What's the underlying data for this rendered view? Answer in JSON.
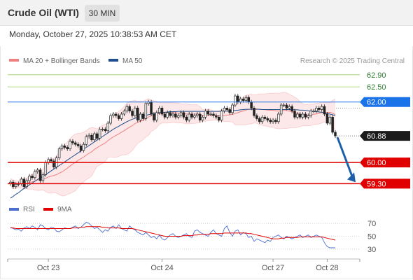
{
  "header": {
    "instrument": "Crude Oil (WTI)",
    "timeframe": "30 MIN",
    "timestamp": "Monday, October 27, 2025 10:38:53 AM CET",
    "copyright": "Research © 2025 Trading Central"
  },
  "colors": {
    "resistance": "#2e7d32",
    "pivot": "#1a73e8",
    "support": "#e00000",
    "last_price": "#1a1a1a",
    "ma50": "#1f4e8c",
    "bollinger": "#f08080",
    "rsi": "#4a6fd0",
    "rsi_ma": "#e00000",
    "arrow": "#1f5fa8"
  },
  "chart_data": [
    {
      "type": "candlestick",
      "title": "",
      "legend": [
        {
          "name": "MA 20 + Bollinger Bands",
          "color": "#f08080"
        },
        {
          "name": "MA 50",
          "color": "#1f4e8c"
        }
      ],
      "ylim": [
        58.8,
        63.15
      ],
      "x_ticks": [
        {
          "label": "Oct 23",
          "index": 14
        },
        {
          "label": "Oct 24",
          "index": 56
        },
        {
          "label": "Oct 27",
          "index": 97
        },
        {
          "label": "Oct 28",
          "index": 117
        }
      ],
      "price_series": [
        59.35,
        59.2,
        59.28,
        59.3,
        59.45,
        59.2,
        59.4,
        59.55,
        59.5,
        59.7,
        59.75,
        59.4,
        59.6,
        60.0,
        60.1,
        60.05,
        59.85,
        60.15,
        60.45,
        60.55,
        60.5,
        60.45,
        60.7,
        60.65,
        60.6,
        60.55,
        60.4,
        60.6,
        60.85,
        60.9,
        60.75,
        60.95,
        60.8,
        61.1,
        61.1,
        61.05,
        61.3,
        61.55,
        61.6,
        61.55,
        61.45,
        61.6,
        61.7,
        61.85,
        61.7,
        61.55,
        61.8,
        61.4,
        61.6,
        61.45,
        61.95,
        62.0,
        61.6,
        61.4,
        61.65,
        61.8,
        61.6,
        61.5,
        61.65,
        61.55,
        61.6,
        61.5,
        61.55,
        61.65,
        61.5,
        61.4,
        61.6,
        61.5,
        61.55,
        61.6,
        61.4,
        61.5,
        61.7,
        61.6,
        61.6,
        61.55,
        61.5,
        61.4,
        61.7,
        61.8,
        61.75,
        61.65,
        61.9,
        62.2,
        62.0,
        62.1,
        62.05,
        62.15,
        62.0,
        61.8,
        61.55,
        61.45,
        61.35,
        61.5,
        61.45,
        61.4,
        61.35,
        61.4,
        61.35,
        61.6,
        61.9,
        61.9,
        61.8,
        61.85,
        61.7,
        61.5,
        61.6,
        61.5,
        61.6,
        61.5,
        61.55,
        61.7,
        61.7,
        61.8,
        61.75,
        61.85,
        61.6,
        61.3,
        61.5,
        61.0,
        60.88
      ],
      "ma50": [
        58.82,
        58.88,
        58.95,
        59.0,
        59.08,
        59.14,
        59.2,
        59.26,
        59.32,
        59.38,
        59.44,
        59.49,
        59.55,
        59.6,
        59.66,
        59.72,
        59.78,
        59.84,
        59.9,
        59.96,
        60.02,
        60.08,
        60.14,
        60.2,
        60.26,
        60.32,
        60.38,
        60.44,
        60.5,
        60.56,
        60.62,
        60.68,
        60.74,
        60.8,
        60.86,
        60.92,
        60.98,
        61.04,
        61.1,
        61.15,
        61.2,
        61.25,
        61.3,
        61.35,
        61.39,
        61.43,
        61.46,
        61.49,
        61.52,
        61.54,
        61.56,
        61.58,
        61.6,
        61.62,
        61.63,
        61.64,
        61.65,
        61.66,
        61.67,
        61.68,
        61.68,
        61.68,
        61.69,
        61.69,
        61.69,
        61.69,
        61.69,
        61.69,
        61.69,
        61.69,
        61.69,
        61.69,
        61.69,
        61.69,
        61.69,
        61.69,
        61.69,
        61.69,
        61.7,
        61.7,
        61.7,
        61.7,
        61.71,
        61.72,
        61.73,
        61.74,
        61.75,
        61.76,
        61.76,
        61.76,
        61.76,
        61.76,
        61.76,
        61.75,
        61.75,
        61.75,
        61.75,
        61.75,
        61.75,
        61.75,
        61.75,
        61.75,
        61.75,
        61.75,
        61.75,
        61.74,
        61.74,
        61.73,
        61.73,
        61.72,
        61.71,
        61.7,
        61.69,
        61.68,
        61.67,
        61.66,
        61.64,
        61.62,
        61.6,
        61.58,
        61.55
      ],
      "levels": [
        {
          "value": 62.9,
          "label": "62.90",
          "kind": "resistance"
        },
        {
          "value": 62.5,
          "label": "62.50",
          "kind": "resistance"
        },
        {
          "value": 62.0,
          "label": "62.00",
          "kind": "pivot"
        },
        {
          "value": 60.88,
          "label": "60.88",
          "kind": "last"
        },
        {
          "value": 60.0,
          "label": "60.00",
          "kind": "support"
        },
        {
          "value": 59.3,
          "label": "59.30",
          "kind": "support"
        }
      ],
      "forecast_arrow": {
        "from": 60.88,
        "to": 59.3
      }
    },
    {
      "type": "line",
      "title": "",
      "legend": [
        {
          "name": "RSI",
          "color": "#4a6fd0"
        },
        {
          "name": "9MA",
          "color": "#e00000"
        }
      ],
      "ylim": [
        20,
        80
      ],
      "y_ticks": [
        {
          "value": 70,
          "label": "70"
        },
        {
          "value": 50,
          "label": "50"
        },
        {
          "value": 30,
          "label": "30"
        }
      ],
      "series": [
        {
          "name": "RSI",
          "values": [
            64,
            62,
            60,
            61,
            58,
            63,
            65,
            62,
            66,
            64,
            60,
            68,
            66,
            62,
            60,
            64,
            63,
            58,
            57,
            60,
            63,
            62,
            62,
            64,
            66,
            62,
            64,
            68,
            72,
            70,
            66,
            62,
            64,
            60,
            56,
            60,
            58,
            64,
            66,
            62,
            68,
            62,
            60,
            58,
            66,
            62,
            60,
            56,
            54,
            52,
            56,
            52,
            48,
            50,
            46,
            52,
            46,
            44,
            48,
            52,
            54,
            50,
            48,
            50,
            52,
            54,
            50,
            48,
            58,
            60,
            56,
            54,
            52,
            50,
            56,
            60,
            54,
            52,
            50,
            62,
            66,
            56,
            50,
            58,
            60,
            52,
            56,
            54,
            48,
            50,
            42,
            46,
            44,
            42,
            40,
            44,
            42,
            48,
            50,
            52,
            48,
            46,
            50,
            48,
            46,
            48,
            50,
            52,
            48,
            50,
            52,
            48,
            50,
            52,
            50,
            48,
            40,
            34,
            32,
            32,
            32
          ]
        },
        {
          "name": "9MA",
          "values": [
            63,
            63,
            62,
            62,
            62,
            62,
            62,
            62,
            62,
            62,
            62,
            62,
            62,
            62,
            62,
            62,
            62,
            62,
            62,
            62,
            62,
            62,
            62,
            63,
            63,
            63,
            64,
            64,
            65,
            65,
            65,
            65,
            65,
            65,
            64,
            64,
            63,
            63,
            63,
            63,
            63,
            62,
            62,
            62,
            62,
            62,
            61,
            60,
            59,
            58,
            57,
            56,
            55,
            54,
            53,
            52,
            51,
            50,
            50,
            50,
            50,
            50,
            50,
            50,
            51,
            51,
            51,
            51,
            52,
            52,
            53,
            53,
            53,
            53,
            54,
            54,
            54,
            54,
            54,
            55,
            55,
            55,
            55,
            55,
            55,
            55,
            55,
            55,
            54,
            54,
            53,
            52,
            51,
            50,
            49,
            48,
            47,
            46,
            46,
            46,
            47,
            47,
            48,
            48,
            48,
            48,
            48,
            49,
            49,
            49,
            49,
            49,
            49,
            49,
            49,
            49,
            48,
            47,
            46,
            45,
            44
          ]
        }
      ]
    }
  ]
}
